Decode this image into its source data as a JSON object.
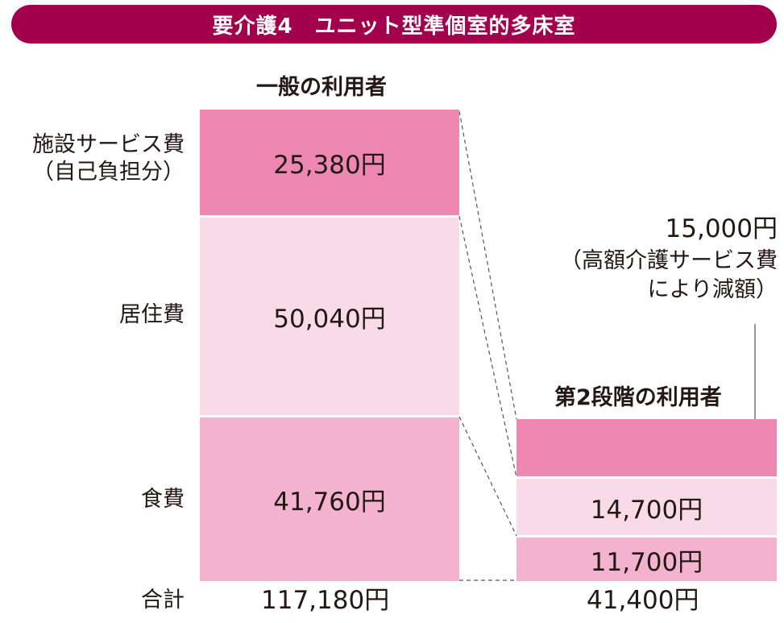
{
  "title": "要介護4　ユニット型準個室的多床室",
  "colors": {
    "banner": "#a2004d",
    "facility": "#ee88b3",
    "residence": "#f9dbe7",
    "food": "#f3b2cd"
  },
  "row_labels": {
    "facility_line1": "施設サービス費",
    "facility_line2": "（自己負担分）",
    "residence": "居住費",
    "food": "食費",
    "total": "合計"
  },
  "note": {
    "amount": "15,000円",
    "line1": "（高額介護サービス費",
    "line2": "により減額）"
  },
  "chart_data": {
    "type": "bar",
    "stacked": true,
    "categories": [
      "一般の利用者",
      "第2段階の利用者"
    ],
    "series": [
      {
        "name": "施設サービス費（自己負担分）",
        "values": [
          25380,
          15000
        ],
        "labels": [
          "25,380円",
          ""
        ]
      },
      {
        "name": "居住費",
        "values": [
          50040,
          14700
        ],
        "labels": [
          "50,040円",
          "14,700円"
        ]
      },
      {
        "name": "食費",
        "values": [
          41760,
          11700
        ],
        "labels": [
          "41,760円",
          "11,700円"
        ]
      }
    ],
    "totals": [
      117180,
      41400
    ],
    "total_labels": [
      "117,180円",
      "41,400円"
    ]
  }
}
